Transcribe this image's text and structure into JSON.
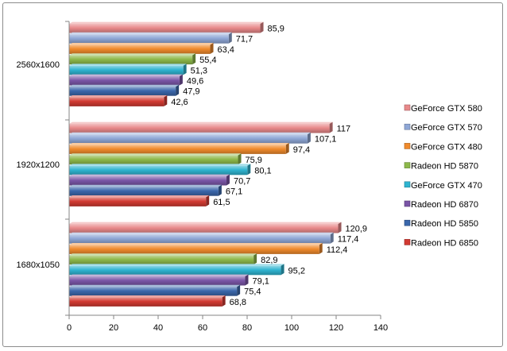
{
  "chart_data": {
    "type": "bar",
    "orientation": "horizontal",
    "categories": [
      "2560x1600",
      "1920x1200",
      "1680x1050"
    ],
    "xlim": [
      0,
      140
    ],
    "xticks": [
      0,
      20,
      40,
      60,
      80,
      100,
      120,
      140
    ],
    "grid": false,
    "legend_position": "right",
    "series": [
      {
        "name": "GeForce GTX 580",
        "color": "#e8898a",
        "values": [
          85.9,
          117,
          120.9
        ],
        "labels": [
          "85,9",
          "117",
          "120,9"
        ]
      },
      {
        "name": "GeForce GTX 570",
        "color": "#8fa7d6",
        "values": [
          71.7,
          107.1,
          117.4
        ],
        "labels": [
          "71,7",
          "107,1",
          "117,4"
        ]
      },
      {
        "name": "GeForce GTX 480",
        "color": "#f08a2c",
        "values": [
          63.4,
          97.4,
          112.4
        ],
        "labels": [
          "63,4",
          "97,4",
          "112,4"
        ]
      },
      {
        "name": "Radeon HD 5870",
        "color": "#8db84a",
        "values": [
          55.4,
          75.9,
          82.9
        ],
        "labels": [
          "55,4",
          "75,9",
          "82,9"
        ]
      },
      {
        "name": "GeForce GTX 470",
        "color": "#2fb4d0",
        "values": [
          51.3,
          80.1,
          95.2
        ],
        "labels": [
          "51,3",
          "80,1",
          "95,2"
        ]
      },
      {
        "name": "Radeon HD 6870",
        "color": "#7a55a6",
        "values": [
          49.6,
          70.7,
          79.1
        ],
        "labels": [
          "49,6",
          "70,7",
          "79,1"
        ]
      },
      {
        "name": "Radeon HD 5850",
        "color": "#3a67ab",
        "values": [
          47.9,
          67.1,
          75.4
        ],
        "labels": [
          "47,9",
          "67,1",
          "75,4"
        ]
      },
      {
        "name": "Radeon HD 6850",
        "color": "#d23a32",
        "values": [
          42.6,
          61.5,
          68.8
        ],
        "labels": [
          "42,6",
          "61,5",
          "68,8"
        ]
      }
    ]
  }
}
